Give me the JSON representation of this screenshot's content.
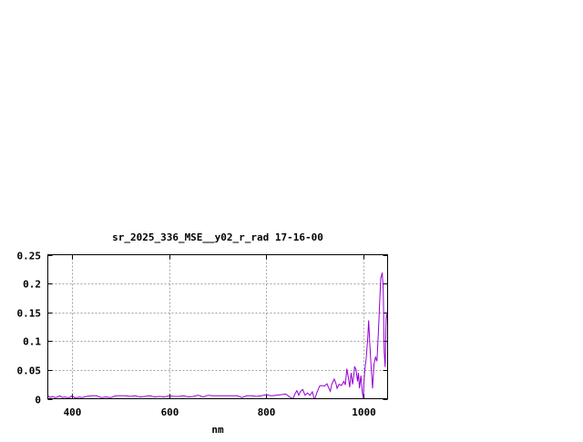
{
  "chart_data": {
    "type": "line",
    "title": "sr_2025_336_MSE__y02_r_rad 17-16-00",
    "xlabel": "nm",
    "ylabel": "",
    "xlim": [
      350,
      1050
    ],
    "ylim": [
      0,
      0.25
    ],
    "grid": true,
    "x_ticks": [
      400,
      600,
      800,
      1000
    ],
    "x_tick_labels": [
      "400",
      "600",
      "800",
      "1000"
    ],
    "y_ticks": [
      0,
      0.05,
      0.1,
      0.15,
      0.2,
      0.25
    ],
    "y_tick_labels": [
      "0",
      "0.05",
      "0.1",
      "0.15",
      "0.2",
      "0.25"
    ],
    "line_color": "#9400d3",
    "grid_color": "#a0a0a0",
    "series": [
      {
        "x": [
          350,
          355,
          360,
          365,
          370,
          375,
          380,
          385,
          390,
          395,
          400,
          405,
          410,
          415,
          420,
          430,
          440,
          450,
          460,
          470,
          480,
          490,
          500,
          510,
          520,
          530,
          540,
          550,
          560,
          570,
          580,
          590,
          600,
          610,
          620,
          630,
          640,
          650,
          660,
          670,
          680,
          690,
          700,
          710,
          720,
          730,
          740,
          750,
          760,
          770,
          780,
          790,
          800,
          810,
          820,
          830,
          840,
          845,
          850,
          855,
          860,
          863,
          867,
          870,
          875,
          880,
          885,
          890,
          895,
          898,
          900,
          905,
          910,
          913,
          920,
          925,
          928,
          932,
          935,
          940,
          943,
          946,
          950,
          955,
          960,
          963,
          966,
          969,
          972,
          975,
          978,
          980,
          982,
          985,
          988,
          990,
          992,
          995,
          998,
          1000,
          1001,
          1003,
          1006,
          1009,
          1011,
          1013,
          1016,
          1019,
          1022,
          1025,
          1028,
          1031,
          1034,
          1036,
          1038,
          1039,
          1041,
          1043,
          1045,
          1047,
          1049,
          1050
        ],
        "y": [
          0.005,
          0.002,
          0.004,
          0.002,
          0.003,
          0.005,
          0.002,
          0.003,
          0.002,
          0.002,
          0.005,
          0.002,
          0.002,
          0.003,
          0.002,
          0.004,
          0.005,
          0.005,
          0.002,
          0.003,
          0.002,
          0.005,
          0.005,
          0.005,
          0.004,
          0.005,
          0.003,
          0.004,
          0.005,
          0.003,
          0.004,
          0.003,
          0.005,
          0.004,
          0.004,
          0.005,
          0.003,
          0.004,
          0.006,
          0.003,
          0.006,
          0.005,
          0.005,
          0.005,
          0.005,
          0.005,
          0.005,
          0.002,
          0.005,
          0.005,
          0.004,
          0.005,
          0.007,
          0.005,
          0.006,
          0.007,
          0.008,
          0.005,
          0.002,
          0.0,
          0.01,
          0.014,
          0.006,
          0.012,
          0.016,
          0.006,
          0.01,
          0.006,
          0.012,
          0.002,
          0.0,
          0.012,
          0.022,
          0.023,
          0.022,
          0.026,
          0.02,
          0.013,
          0.025,
          0.034,
          0.028,
          0.018,
          0.025,
          0.023,
          0.03,
          0.024,
          0.052,
          0.038,
          0.02,
          0.045,
          0.025,
          0.038,
          0.056,
          0.05,
          0.03,
          0.045,
          0.018,
          0.04,
          0.01,
          0.0,
          0.025,
          0.05,
          0.072,
          0.105,
          0.136,
          0.1,
          0.055,
          0.018,
          0.06,
          0.072,
          0.065,
          0.115,
          0.175,
          0.21,
          0.215,
          0.219,
          0.19,
          0.08,
          0.055,
          0.14,
          0.15,
          0.13
        ]
      }
    ]
  }
}
